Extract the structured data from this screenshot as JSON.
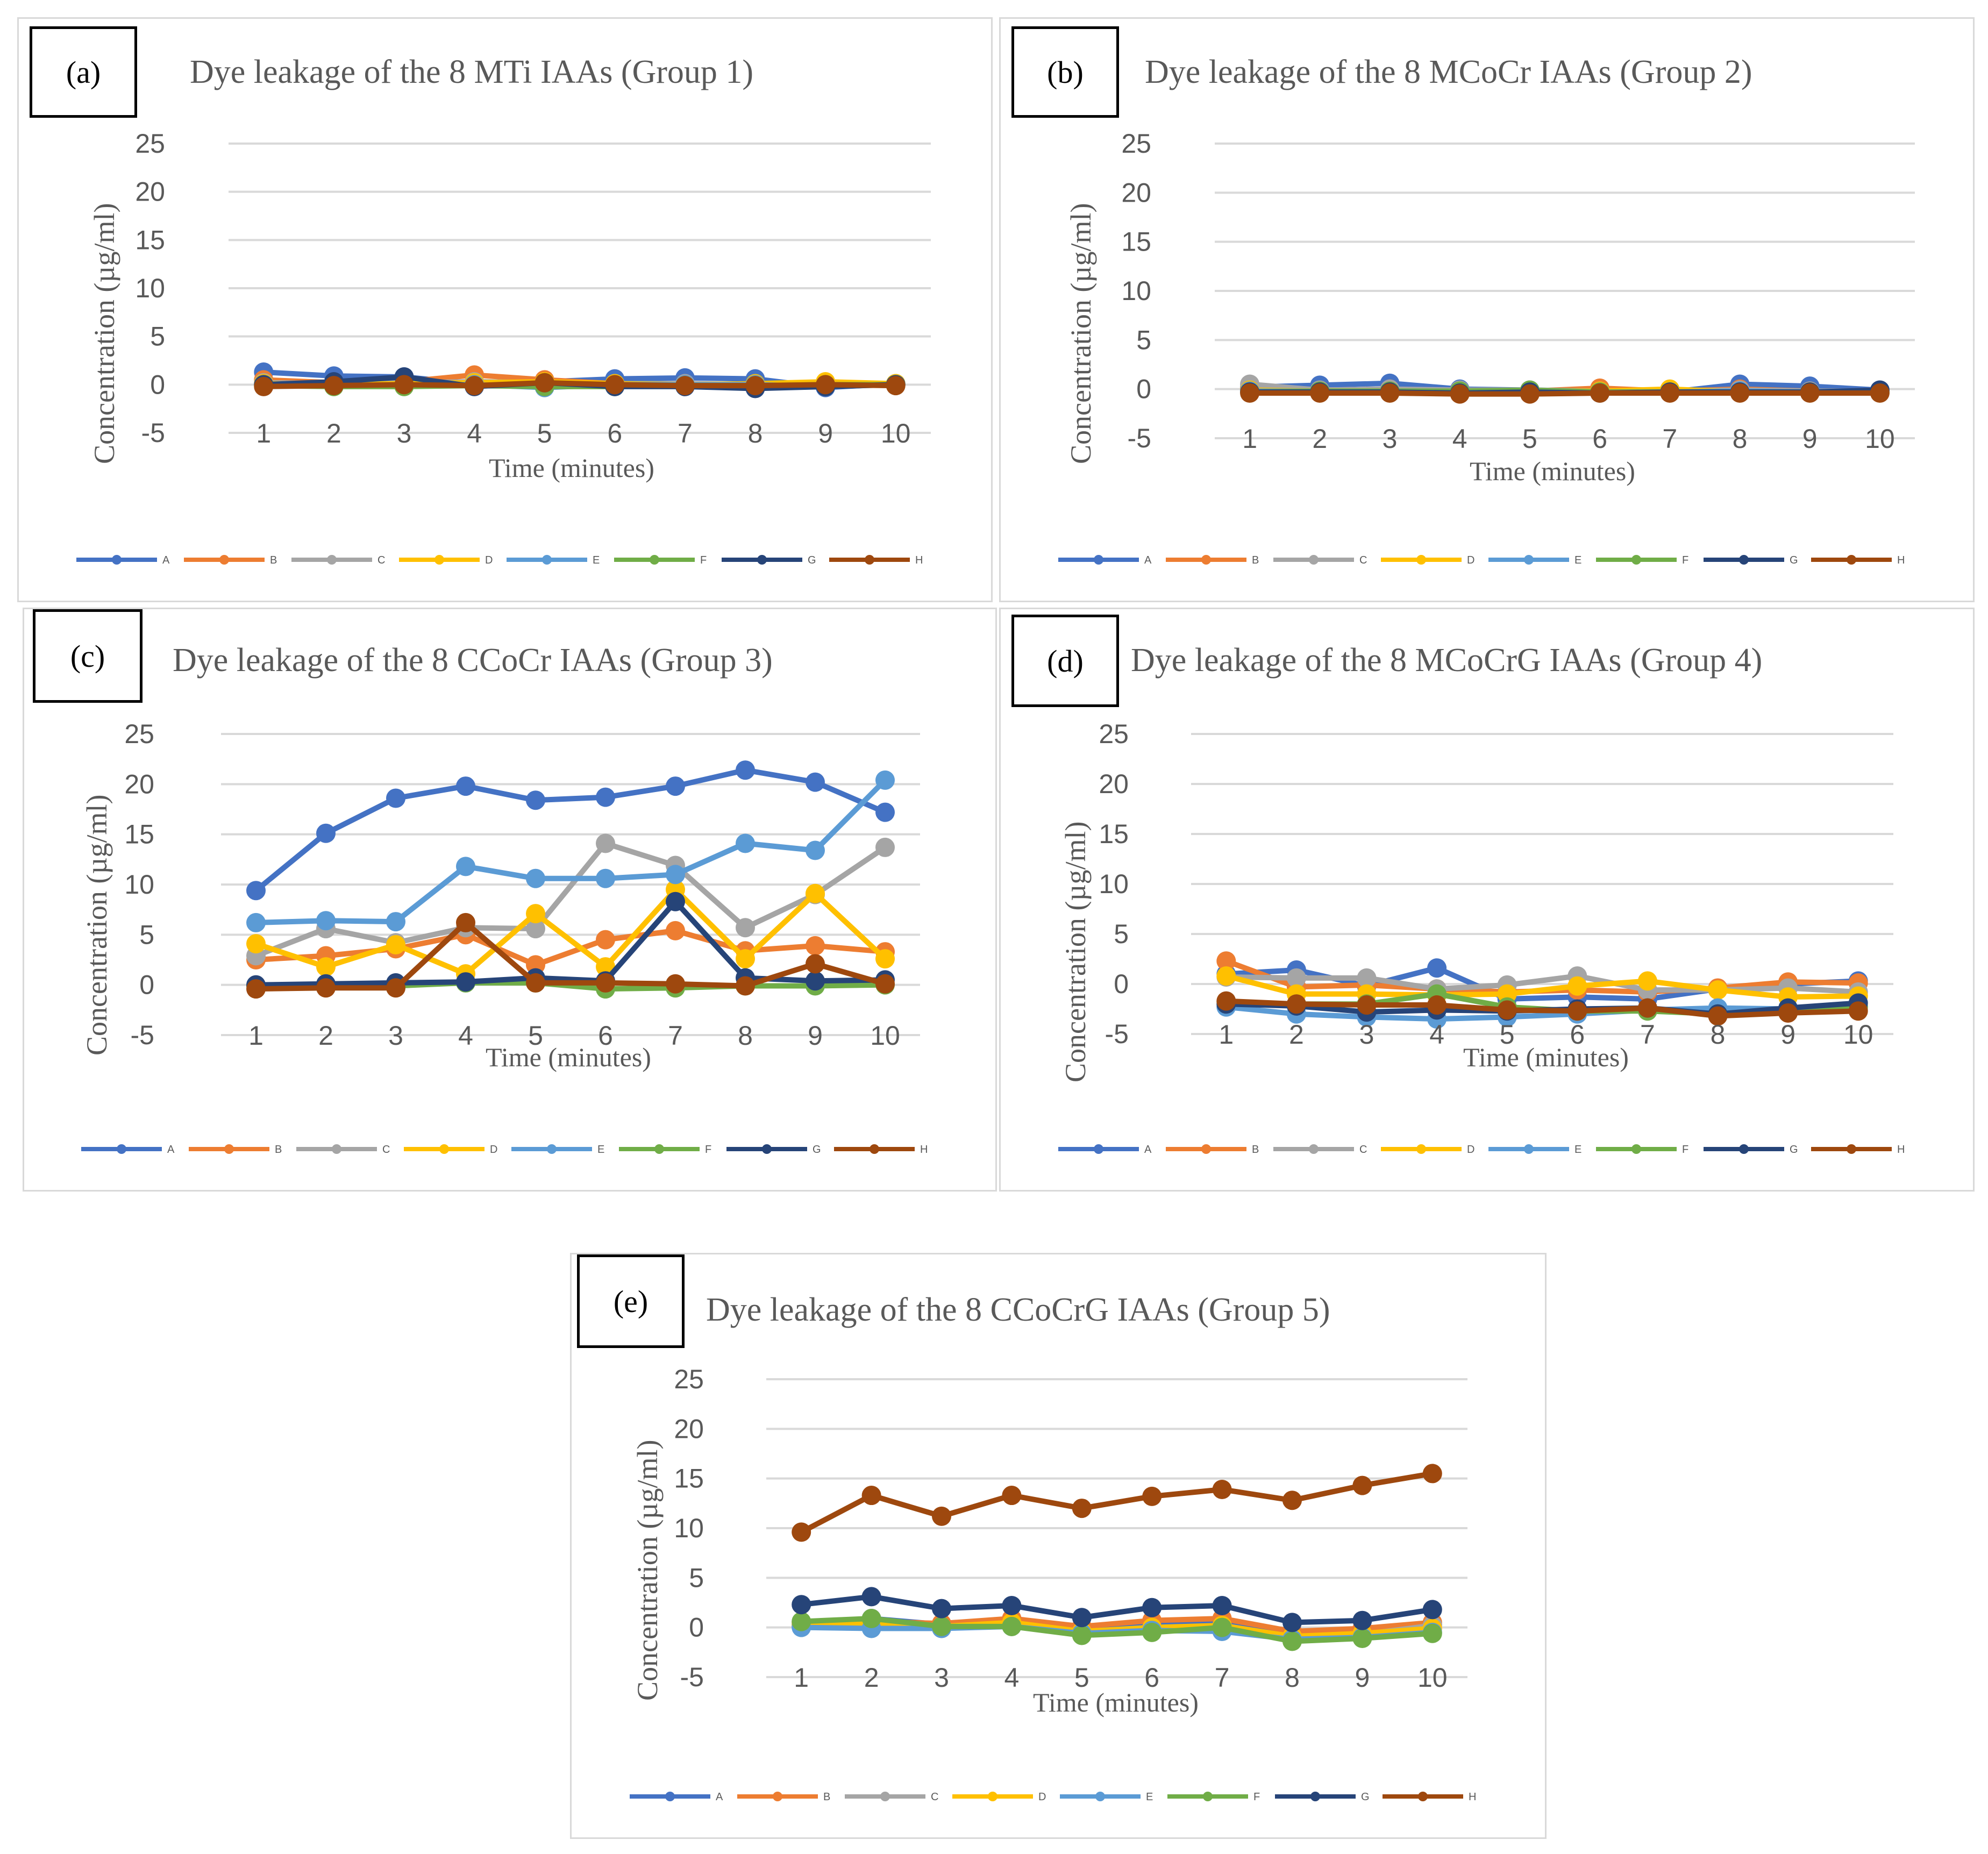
{
  "colors": {
    "A": "#4472c4",
    "B": "#ed7d31",
    "C": "#a5a5a5",
    "D": "#ffc000",
    "E": "#5b9bd5",
    "F": "#70ad47",
    "G": "#264478",
    "H": "#9e480e"
  },
  "chart_data": [
    {
      "id": "a",
      "type": "line",
      "label": "(a)",
      "title": "Dye leakage of the 8 MTi IAAs (Group 1)",
      "xlabel": "Time (minutes)",
      "ylabel": "Concentration (µg/ml)",
      "ylim": [
        -5,
        25
      ],
      "yticks": [
        "25",
        "20",
        "15",
        "10",
        "5",
        "0",
        "-5"
      ],
      "categories": [
        "1",
        "2",
        "3",
        "4",
        "5",
        "6",
        "7",
        "8",
        "9",
        "10"
      ],
      "legend_position": "bottom",
      "series": [
        {
          "name": "A",
          "values": [
            1.3,
            0.9,
            0.8,
            0.1,
            0.3,
            0.6,
            0.7,
            0.6,
            -0.3,
            0.1
          ]
        },
        {
          "name": "B",
          "values": [
            0.5,
            0.2,
            0.3,
            1.0,
            0.5,
            0.1,
            -0.1,
            0.0,
            0.2,
            0.0
          ]
        },
        {
          "name": "C",
          "values": [
            0.2,
            0.1,
            0.2,
            0.3,
            0.2,
            0.1,
            0.1,
            0.0,
            0.1,
            0.0
          ]
        },
        {
          "name": "D",
          "values": [
            0.1,
            0.0,
            0.1,
            0.2,
            0.3,
            0.1,
            0.0,
            0.1,
            0.3,
            0.1
          ]
        },
        {
          "name": "E",
          "values": [
            0.0,
            -0.1,
            -0.1,
            0.0,
            -0.3,
            0.0,
            0.0,
            0.0,
            -0.2,
            0.0
          ]
        },
        {
          "name": "F",
          "values": [
            -0.1,
            -0.2,
            -0.2,
            -0.1,
            -0.2,
            -0.2,
            -0.1,
            -0.1,
            0.0,
            0.0
          ]
        },
        {
          "name": "G",
          "values": [
            0.0,
            0.3,
            0.8,
            -0.2,
            0.2,
            -0.2,
            -0.2,
            -0.4,
            -0.2,
            0.0
          ]
        },
        {
          "name": "H",
          "values": [
            -0.2,
            -0.1,
            0.0,
            -0.1,
            0.2,
            0.0,
            -0.1,
            -0.1,
            0.0,
            -0.1
          ]
        }
      ]
    },
    {
      "id": "b",
      "type": "line",
      "label": "(b)",
      "title": "Dye leakage of the 8 MCoCr IAAs (Group 2)",
      "xlabel": "Time (minutes)",
      "ylabel": "Concentration (µg/ml)",
      "ylim": [
        -5,
        25
      ],
      "yticks": [
        "25",
        "20",
        "15",
        "10",
        "5",
        "0",
        "-5"
      ],
      "categories": [
        "1",
        "2",
        "3",
        "4",
        "5",
        "6",
        "7",
        "8",
        "9",
        "10"
      ],
      "legend_position": "bottom",
      "series": [
        {
          "name": "A",
          "values": [
            0.2,
            0.4,
            0.6,
            0.0,
            -0.1,
            -0.2,
            -0.3,
            0.5,
            0.3,
            -0.1
          ]
        },
        {
          "name": "B",
          "values": [
            0.0,
            -0.1,
            0.0,
            -0.2,
            -0.2,
            0.1,
            -0.2,
            0.0,
            -0.2,
            -0.3
          ]
        },
        {
          "name": "C",
          "values": [
            0.5,
            -0.1,
            0.0,
            -0.1,
            -0.1,
            -0.2,
            -0.2,
            -0.1,
            -0.2,
            -0.2
          ]
        },
        {
          "name": "D",
          "values": [
            -0.1,
            -0.2,
            -0.2,
            -0.3,
            -0.2,
            -0.2,
            0.0,
            -0.3,
            -0.3,
            -0.3
          ]
        },
        {
          "name": "E",
          "values": [
            -0.2,
            -0.2,
            -0.3,
            -0.3,
            -0.3,
            -0.3,
            -0.3,
            -0.2,
            -0.3,
            -0.3
          ]
        },
        {
          "name": "F",
          "values": [
            -0.3,
            -0.2,
            -0.2,
            -0.2,
            -0.1,
            -0.3,
            -0.3,
            -0.3,
            -0.3,
            -0.3
          ]
        },
        {
          "name": "G",
          "values": [
            -0.3,
            -0.3,
            -0.3,
            -0.4,
            -0.3,
            -0.4,
            -0.3,
            -0.3,
            -0.3,
            -0.1
          ]
        },
        {
          "name": "H",
          "values": [
            -0.4,
            -0.4,
            -0.4,
            -0.5,
            -0.5,
            -0.4,
            -0.4,
            -0.4,
            -0.4,
            -0.4
          ]
        }
      ]
    },
    {
      "id": "c",
      "type": "line",
      "label": "(c)",
      "title": "Dye leakage of the 8 CCoCr IAAs (Group 3)",
      "xlabel": "Time (minutes)",
      "ylabel": "Concentration (µg/ml)",
      "ylim": [
        -5,
        25
      ],
      "yticks": [
        "25",
        "20",
        "15",
        "10",
        "5",
        "0",
        "-5"
      ],
      "categories": [
        "1",
        "2",
        "3",
        "4",
        "5",
        "6",
        "7",
        "8",
        "9",
        "10"
      ],
      "legend_position": "bottom",
      "series": [
        {
          "name": "A",
          "values": [
            9.4,
            15.1,
            18.6,
            19.8,
            18.4,
            18.7,
            19.8,
            21.4,
            20.2,
            17.2
          ]
        },
        {
          "name": "B",
          "values": [
            2.5,
            2.9,
            3.6,
            5.0,
            2.0,
            4.5,
            5.4,
            3.4,
            3.9,
            3.3
          ]
        },
        {
          "name": "C",
          "values": [
            2.9,
            5.6,
            4.2,
            5.7,
            5.6,
            14.1,
            11.9,
            5.7,
            9.0,
            13.7
          ]
        },
        {
          "name": "D",
          "values": [
            4.1,
            1.8,
            4.0,
            1.1,
            7.1,
            1.8,
            9.5,
            2.6,
            9.1,
            2.6
          ]
        },
        {
          "name": "E",
          "values": [
            6.2,
            6.4,
            6.3,
            11.8,
            10.6,
            10.6,
            11.0,
            14.1,
            13.4,
            20.4
          ]
        },
        {
          "name": "F",
          "values": [
            -0.1,
            0.0,
            -0.1,
            0.2,
            0.2,
            -0.4,
            -0.3,
            -0.1,
            -0.1,
            0.0
          ]
        },
        {
          "name": "G",
          "values": [
            0.0,
            0.1,
            0.2,
            0.3,
            0.7,
            0.4,
            8.3,
            0.7,
            0.4,
            0.5
          ]
        },
        {
          "name": "H",
          "values": [
            -0.4,
            -0.3,
            -0.3,
            6.2,
            0.2,
            0.2,
            0.1,
            -0.1,
            2.1,
            0.1
          ]
        }
      ]
    },
    {
      "id": "d",
      "type": "line",
      "label": "(d)",
      "title": "Dye leakage of the 8 MCoCrG IAAs (Group 4)",
      "xlabel": "Time (minutes)",
      "ylabel": "Concentration (µg/ml)",
      "ylim": [
        -5,
        25
      ],
      "yticks": [
        "25",
        "20",
        "15",
        "10",
        "5",
        "0",
        "-5"
      ],
      "categories": [
        "1",
        "2",
        "3",
        "4",
        "5",
        "6",
        "7",
        "8",
        "9",
        "10"
      ],
      "legend_position": "bottom",
      "series": [
        {
          "name": "A",
          "values": [
            1.0,
            1.4,
            -0.2,
            1.6,
            -1.5,
            -1.3,
            -1.5,
            -0.5,
            0.0,
            0.3
          ]
        },
        {
          "name": "B",
          "values": [
            2.3,
            -0.3,
            -0.1,
            -0.5,
            -0.8,
            -0.6,
            -0.8,
            -0.4,
            0.2,
            0.1
          ]
        },
        {
          "name": "C",
          "values": [
            0.7,
            0.6,
            0.6,
            -0.5,
            -0.1,
            0.8,
            -0.6,
            -0.6,
            -0.4,
            -0.8
          ]
        },
        {
          "name": "D",
          "values": [
            0.8,
            -1.0,
            -1.0,
            -1.1,
            -1.0,
            -0.2,
            0.3,
            -0.6,
            -1.3,
            -1.2
          ]
        },
        {
          "name": "E",
          "values": [
            -2.3,
            -3.0,
            -3.3,
            -3.5,
            -3.3,
            -3.0,
            -2.6,
            -2.4,
            -2.5,
            -2.3
          ]
        },
        {
          "name": "F",
          "values": [
            -1.8,
            -2.0,
            -2.0,
            -1.0,
            -2.3,
            -2.7,
            -2.7,
            -3.0,
            -2.5,
            -2.3
          ]
        },
        {
          "name": "G",
          "values": [
            -2.0,
            -2.2,
            -2.8,
            -2.6,
            -2.7,
            -2.5,
            -2.4,
            -3.0,
            -2.4,
            -1.9
          ]
        },
        {
          "name": "H",
          "values": [
            -1.7,
            -2.0,
            -2.1,
            -2.1,
            -2.6,
            -2.7,
            -2.4,
            -3.2,
            -2.9,
            -2.7
          ]
        }
      ]
    },
    {
      "id": "e",
      "type": "line",
      "label": "(e)",
      "title": "Dye leakage of the 8 CCoCrG IAAs (Group 5)",
      "xlabel": "Time (minutes)",
      "ylabel": "Concentration (µg/ml)",
      "ylim": [
        -5,
        25
      ],
      "yticks": [
        "25",
        "20",
        "15",
        "10",
        "5",
        "0",
        "-5"
      ],
      "categories": [
        "1",
        "2",
        "3",
        "4",
        "5",
        "6",
        "7",
        "8",
        "9",
        "10"
      ],
      "legend_position": "bottom",
      "series": [
        {
          "name": "A",
          "values": [
            0.3,
            0.9,
            0.3,
            0.6,
            -0.3,
            0.2,
            0.4,
            -0.8,
            -0.5,
            0.3
          ]
        },
        {
          "name": "B",
          "values": [
            0.5,
            0.6,
            0.4,
            0.9,
            0.1,
            0.7,
            0.9,
            -0.4,
            -0.1,
            0.5
          ]
        },
        {
          "name": "C",
          "values": [
            0.1,
            0.0,
            -0.1,
            0.3,
            -0.5,
            -0.2,
            0.0,
            -1.0,
            -0.7,
            0.2
          ]
        },
        {
          "name": "D",
          "values": [
            0.2,
            0.4,
            0.1,
            0.5,
            -0.4,
            0.0,
            0.2,
            -0.9,
            -0.6,
            -0.1
          ]
        },
        {
          "name": "E",
          "values": [
            0.0,
            -0.1,
            -0.1,
            0.1,
            -0.6,
            -0.3,
            -0.4,
            -1.2,
            -1.0,
            -0.5
          ]
        },
        {
          "name": "F",
          "values": [
            0.6,
            0.9,
            0.1,
            0.1,
            -0.8,
            -0.5,
            0.0,
            -1.4,
            -1.1,
            -0.6
          ]
        },
        {
          "name": "G",
          "values": [
            2.3,
            3.1,
            1.9,
            2.2,
            1.0,
            2.0,
            2.2,
            0.5,
            0.7,
            1.8
          ]
        },
        {
          "name": "H",
          "values": [
            9.6,
            13.3,
            11.2,
            13.3,
            12.0,
            13.2,
            13.9,
            12.8,
            14.3,
            15.5
          ]
        }
      ]
    }
  ]
}
